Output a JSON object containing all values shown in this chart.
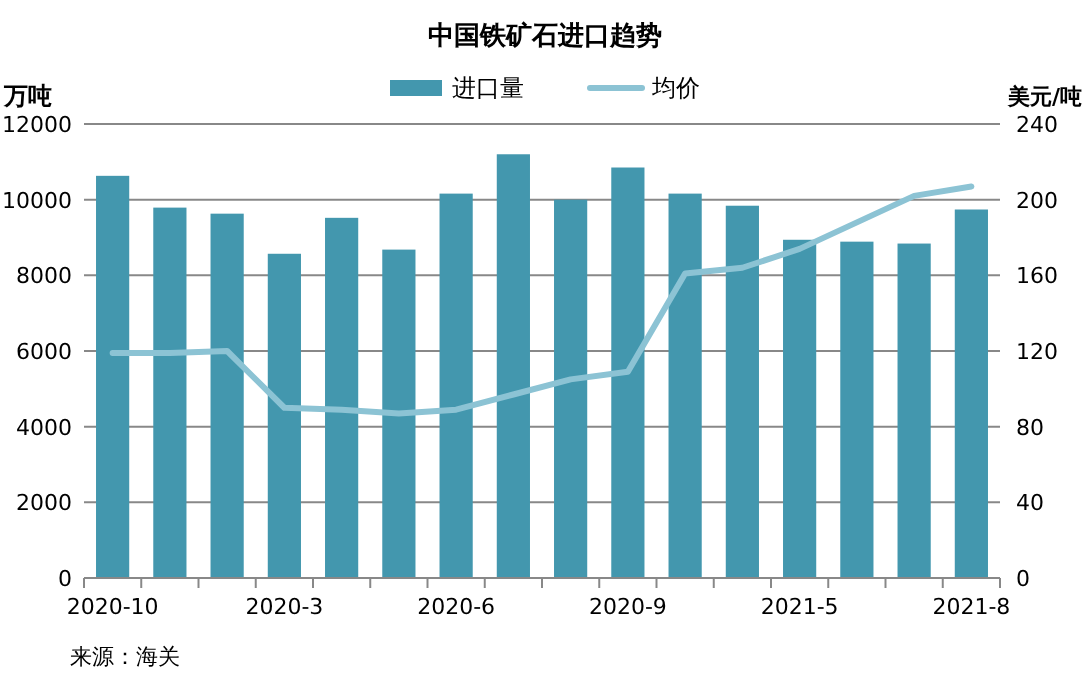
{
  "chart_data": {
    "type": "bar",
    "title": "中国铁矿石进口趋势",
    "ylabel": "万吨",
    "y2label": "美元/吨",
    "categories": [
      "2020-10",
      null,
      null,
      "2020-3",
      null,
      null,
      "2020-6",
      null,
      null,
      "2020-9",
      null,
      null,
      "2021-5",
      null,
      null,
      "2021-8"
    ],
    "series": [
      {
        "name": "进口量",
        "color": "#4397ae",
        "values": [
          10630,
          9790,
          9630,
          8570,
          9520,
          8680,
          10160,
          11200,
          10000,
          10850,
          10160,
          9840,
          8940,
          8890,
          8840,
          9740
        ]
      },
      {
        "name": "均价",
        "type": "line",
        "axis": "y2",
        "color": "#8cc3d4",
        "values": [
          119,
          119,
          120,
          90,
          89,
          87,
          89,
          97,
          105,
          109,
          161,
          164,
          174,
          188,
          202,
          207
        ]
      }
    ],
    "ylim": [
      0,
      12000
    ],
    "yticks": [
      0,
      2000,
      4000,
      6000,
      8000,
      10000,
      12000
    ],
    "y2lim": [
      0,
      240
    ],
    "y2ticks": [
      0,
      40,
      80,
      120,
      160,
      200,
      240
    ],
    "grid": "y",
    "legend": "top",
    "marker": "none",
    "line_style": "solid",
    "annotations": [
      "来源：海关"
    ]
  }
}
